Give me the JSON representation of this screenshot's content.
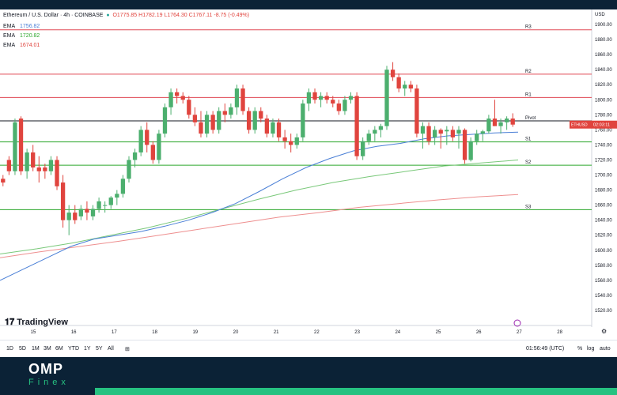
{
  "header": {
    "symbol": "Ethereum / U.S. Dollar · 4h · COINBASE",
    "ohlc": "O1775.85 H1782.19 L1764.30 C1767.11 -8.75 (-0.49%)"
  },
  "emas": [
    {
      "label": "EMA",
      "value": "1756.82",
      "color": "#4a7fd6"
    },
    {
      "label": "EMA",
      "value": "1720.82",
      "color": "#2ca62c"
    },
    {
      "label": "EMA",
      "value": "1674.01",
      "color": "#e0443e"
    }
  ],
  "price_axis_label": "USD",
  "current_price_tag": {
    "symbol": "ETHUSD",
    "value": "02:03:11"
  },
  "timeframes": [
    "1D",
    "5D",
    "1M",
    "3M",
    "6M",
    "YTD",
    "1Y",
    "5Y",
    "All"
  ],
  "clock": "01:56:49 (UTC)",
  "options": [
    "%",
    "log",
    "auto"
  ],
  "brand": {
    "name": "OMP",
    "sub": "Finex"
  },
  "tv_logo_text": "TradingView",
  "colors": {
    "bull": "#4caf6e",
    "bear": "#e0443e",
    "pivot": "#131722",
    "resistance": "#e04a55",
    "support": "#2ca62c",
    "ema_fast": "#4a7fd6",
    "ema_mid": "#79c879",
    "ema_slow": "#ee8f8f"
  },
  "chart_data": {
    "type": "candlestick",
    "ylim": [
      1500,
      1920
    ],
    "yticks": [
      1520,
      1540,
      1560,
      1580,
      1600,
      1620,
      1640,
      1660,
      1680,
      1700,
      1720,
      1740,
      1760,
      1780,
      1800,
      1820,
      1840,
      1860,
      1880,
      1900
    ],
    "x_labels": [
      "15",
      "16",
      "17",
      "18",
      "19",
      "20",
      "21",
      "22",
      "23",
      "24",
      "25",
      "26",
      "27",
      "28"
    ],
    "levels": [
      {
        "name": "R3",
        "value": 1893,
        "kind": "resistance"
      },
      {
        "name": "R2",
        "value": 1834,
        "kind": "resistance"
      },
      {
        "name": "R1",
        "value": 1803,
        "kind": "resistance"
      },
      {
        "name": "Pivot",
        "value": 1772,
        "kind": "pivot"
      },
      {
        "name": "S1",
        "value": 1744,
        "kind": "support"
      },
      {
        "name": "S2",
        "value": 1713,
        "kind": "support"
      },
      {
        "name": "S3",
        "value": 1654,
        "kind": "support"
      }
    ],
    "candles": [
      [
        1695,
        1700,
        1685,
        1690
      ],
      [
        1720,
        1725,
        1700,
        1705
      ],
      [
        1705,
        1775,
        1700,
        1770
      ],
      [
        1775,
        1778,
        1700,
        1705
      ],
      [
        1705,
        1735,
        1695,
        1730
      ],
      [
        1730,
        1740,
        1705,
        1710
      ],
      [
        1710,
        1725,
        1690,
        1705
      ],
      [
        1710,
        1715,
        1695,
        1705
      ],
      [
        1705,
        1725,
        1700,
        1720
      ],
      [
        1720,
        1725,
        1680,
        1685
      ],
      [
        1690,
        1700,
        1630,
        1640
      ],
      [
        1640,
        1660,
        1620,
        1650
      ],
      [
        1650,
        1660,
        1635,
        1640
      ],
      [
        1645,
        1660,
        1640,
        1655
      ],
      [
        1655,
        1665,
        1640,
        1650
      ],
      [
        1645,
        1660,
        1640,
        1655
      ],
      [
        1655,
        1670,
        1650,
        1665
      ],
      [
        1660,
        1665,
        1650,
        1660
      ],
      [
        1660,
        1672,
        1655,
        1670
      ],
      [
        1670,
        1680,
        1660,
        1675
      ],
      [
        1675,
        1700,
        1670,
        1695
      ],
      [
        1695,
        1725,
        1690,
        1720
      ],
      [
        1720,
        1735,
        1710,
        1730
      ],
      [
        1730,
        1765,
        1725,
        1760
      ],
      [
        1760,
        1770,
        1730,
        1740
      ],
      [
        1740,
        1745,
        1715,
        1720
      ],
      [
        1720,
        1760,
        1715,
        1755
      ],
      [
        1755,
        1795,
        1750,
        1790
      ],
      [
        1790,
        1815,
        1780,
        1810
      ],
      [
        1810,
        1815,
        1795,
        1805
      ],
      [
        1805,
        1810,
        1795,
        1800
      ],
      [
        1800,
        1805,
        1775,
        1780
      ],
      [
        1780,
        1790,
        1765,
        1770
      ],
      [
        1770,
        1785,
        1750,
        1755
      ],
      [
        1755,
        1785,
        1750,
        1780
      ],
      [
        1780,
        1785,
        1755,
        1760
      ],
      [
        1760,
        1790,
        1755,
        1785
      ],
      [
        1785,
        1795,
        1770,
        1780
      ],
      [
        1780,
        1795,
        1775,
        1790
      ],
      [
        1790,
        1820,
        1780,
        1815
      ],
      [
        1815,
        1820,
        1780,
        1785
      ],
      [
        1785,
        1790,
        1755,
        1760
      ],
      [
        1760,
        1790,
        1755,
        1785
      ],
      [
        1785,
        1790,
        1770,
        1775
      ],
      [
        1775,
        1780,
        1750,
        1755
      ],
      [
        1755,
        1775,
        1750,
        1770
      ],
      [
        1770,
        1775,
        1745,
        1750
      ],
      [
        1750,
        1760,
        1735,
        1745
      ],
      [
        1745,
        1755,
        1730,
        1740
      ],
      [
        1740,
        1755,
        1735,
        1750
      ],
      [
        1750,
        1800,
        1745,
        1795
      ],
      [
        1795,
        1815,
        1785,
        1810
      ],
      [
        1810,
        1815,
        1795,
        1800
      ],
      [
        1800,
        1810,
        1790,
        1805
      ],
      [
        1805,
        1810,
        1795,
        1800
      ],
      [
        1800,
        1805,
        1790,
        1795
      ],
      [
        1795,
        1800,
        1780,
        1785
      ],
      [
        1785,
        1805,
        1780,
        1800
      ],
      [
        1800,
        1810,
        1795,
        1805
      ],
      [
        1805,
        1810,
        1720,
        1725
      ],
      [
        1725,
        1750,
        1720,
        1745
      ],
      [
        1745,
        1760,
        1740,
        1755
      ],
      [
        1755,
        1765,
        1745,
        1760
      ],
      [
        1760,
        1768,
        1750,
        1765
      ],
      [
        1765,
        1845,
        1760,
        1840
      ],
      [
        1840,
        1850,
        1825,
        1830
      ],
      [
        1830,
        1835,
        1810,
        1815
      ],
      [
        1815,
        1825,
        1805,
        1820
      ],
      [
        1820,
        1825,
        1810,
        1815
      ],
      [
        1815,
        1820,
        1750,
        1755
      ],
      [
        1755,
        1770,
        1735,
        1765
      ],
      [
        1765,
        1770,
        1740,
        1745
      ],
      [
        1750,
        1765,
        1740,
        1760
      ],
      [
        1760,
        1762,
        1735,
        1755
      ],
      [
        1758,
        1765,
        1740,
        1760
      ],
      [
        1760,
        1765,
        1745,
        1750
      ],
      [
        1755,
        1765,
        1735,
        1760
      ],
      [
        1760,
        1762,
        1715,
        1720
      ],
      [
        1720,
        1750,
        1718,
        1745
      ],
      [
        1745,
        1760,
        1740,
        1755
      ],
      [
        1755,
        1760,
        1745,
        1758
      ],
      [
        1758,
        1780,
        1755,
        1775
      ],
      [
        1775,
        1800,
        1765,
        1765
      ],
      [
        1765,
        1775,
        1755,
        1770
      ],
      [
        1770,
        1778,
        1760,
        1775
      ],
      [
        1775,
        1782,
        1764,
        1767
      ]
    ],
    "ema_fast": [
      1560,
      1575,
      1590,
      1605,
      1615,
      1620,
      1625,
      1632,
      1640,
      1650,
      1662,
      1678,
      1695,
      1710,
      1722,
      1732,
      1738,
      1742,
      1748,
      1752,
      1754,
      1756,
      1757
    ],
    "ema_mid": [
      1595,
      1602,
      1610,
      1620,
      1630,
      1642,
      1655,
      1668,
      1680,
      1690,
      1698,
      1705,
      1712,
      1716,
      1720
    ],
    "ema_slow": [
      1590,
      1598,
      1605,
      1612,
      1620,
      1628,
      1636,
      1644,
      1650,
      1657,
      1662,
      1667,
      1671,
      1674
    ]
  }
}
